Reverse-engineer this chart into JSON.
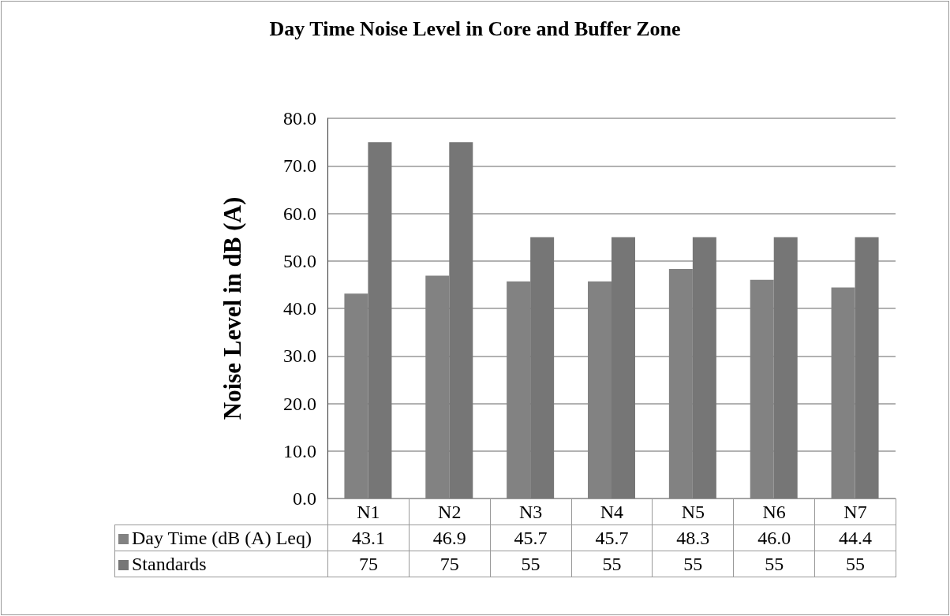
{
  "chart_data": {
    "type": "bar",
    "title": "Day Time Noise Level in Core and Buffer Zone",
    "ylabel": "Noise Level in dB (A)",
    "categories": [
      "N1",
      "N2",
      "N3",
      "N4",
      "N5",
      "N6",
      "N7"
    ],
    "series": [
      {
        "name": "Day Time (dB (A) Leq)",
        "color": "#828282",
        "values": [
          43.1,
          46.9,
          45.7,
          45.7,
          48.3,
          46.0,
          44.4
        ],
        "value_labels": [
          "43.1",
          "46.9",
          "45.7",
          "45.7",
          "48.3",
          "46.0",
          "44.4"
        ]
      },
      {
        "name": "Standards",
        "color": "#767676",
        "values": [
          75,
          75,
          55,
          55,
          55,
          55,
          55
        ],
        "value_labels": [
          "75",
          "75",
          "55",
          "55",
          "55",
          "55",
          "55"
        ]
      }
    ],
    "ylim": [
      0,
      80
    ],
    "yticks": [
      {
        "value": 0,
        "label": "0.0"
      },
      {
        "value": 10,
        "label": "10.0"
      },
      {
        "value": 20,
        "label": "20.0"
      },
      {
        "value": 30,
        "label": "30.0"
      },
      {
        "value": 40,
        "label": "40.0"
      },
      {
        "value": 50,
        "label": "50.0"
      },
      {
        "value": 60,
        "label": "60.0"
      },
      {
        "value": 70,
        "label": "70.0"
      },
      {
        "value": 80,
        "label": "80.0"
      }
    ],
    "grid": "y",
    "legend": "bottom"
  }
}
